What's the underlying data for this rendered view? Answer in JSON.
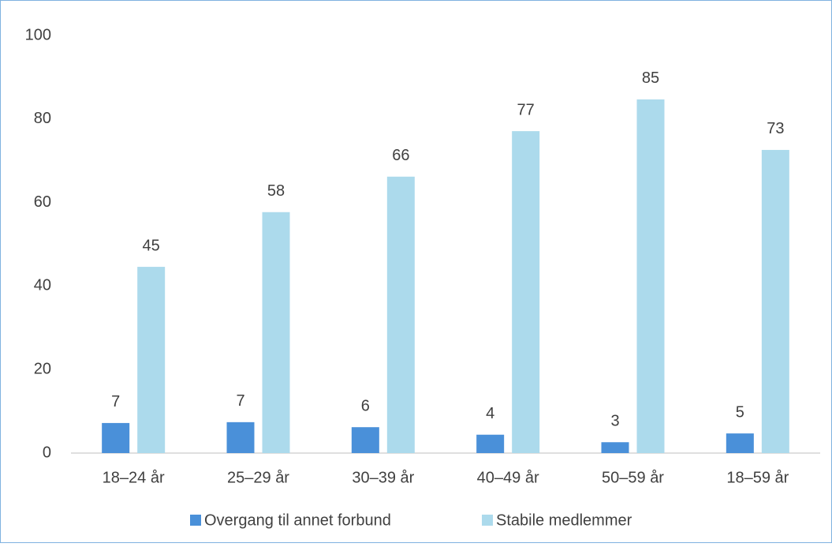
{
  "chart_data": {
    "type": "bar",
    "categories": [
      "18–24 år",
      "25–29 år",
      "30–39 år",
      "40–49 år",
      "50–59 år",
      "18–59 år"
    ],
    "series": [
      {
        "name": "Overgang til annet forbund",
        "color": "#4a90d9",
        "values": [
          7.2,
          7.4,
          6.2,
          4.4,
          2.6,
          4.7
        ],
        "value_labels": [
          "7",
          "7",
          "6",
          "4",
          "3",
          "5"
        ]
      },
      {
        "name": "Stabile medlemmer",
        "color": "#acdaec",
        "values": [
          44.6,
          57.7,
          66.2,
          77.1,
          84.7,
          72.6
        ],
        "value_labels": [
          "45",
          "58",
          "66",
          "77",
          "85",
          "73"
        ]
      }
    ],
    "ylim": [
      0,
      100
    ],
    "yticks": [
      0,
      20,
      40,
      60,
      80,
      100
    ],
    "grid": false,
    "legend": "bottom"
  }
}
